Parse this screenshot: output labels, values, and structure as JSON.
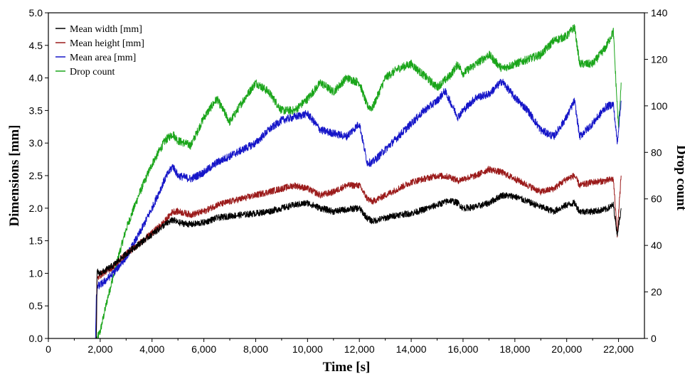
{
  "chart_data": {
    "type": "line",
    "xlabel": "Time [s]",
    "ylabel": "Dimensions [mm]",
    "y2label": "Drop count",
    "xlim": [
      0,
      23000
    ],
    "ylim": [
      0,
      5
    ],
    "y2lim": [
      0,
      140
    ],
    "x_ticks": [
      "0",
      "2,000",
      "4,000",
      "6,000",
      "8,000",
      "10,000",
      "12,000",
      "14,000",
      "16,000",
      "18,000",
      "20,000",
      "22,000"
    ],
    "y_ticks": [
      "0.0",
      "0.5",
      "1.0",
      "1.5",
      "2.0",
      "2.5",
      "3.0",
      "3.5",
      "4.0",
      "4.5",
      "5.0"
    ],
    "y2_ticks": [
      "0",
      "20",
      "40",
      "60",
      "80",
      "100",
      "120",
      "140"
    ],
    "legend_position": "top-left",
    "grid": false,
    "series": [
      {
        "name": "Mean width [mm]",
        "axis": "left",
        "color": "#000000",
        "noise": 0.05,
        "x": [
          0,
          1850,
          1880,
          1950,
          2100,
          2500,
          3000,
          3500,
          4000,
          4500,
          4800,
          5000,
          5500,
          6000,
          6500,
          7000,
          7500,
          8000,
          8500,
          9000,
          9500,
          10000,
          10500,
          11000,
          11500,
          12000,
          12300,
          12500,
          13000,
          13500,
          14000,
          14500,
          15000,
          15500,
          15800,
          16000,
          16500,
          17000,
          17500,
          18000,
          18500,
          19000,
          19500,
          20000,
          20300,
          20500,
          21000,
          21500,
          21800,
          21950,
          22100
        ],
        "y": [
          0,
          0,
          1.05,
          1.0,
          1.02,
          1.12,
          1.3,
          1.45,
          1.6,
          1.75,
          1.82,
          1.78,
          1.75,
          1.78,
          1.85,
          1.88,
          1.9,
          1.92,
          1.95,
          2.0,
          2.05,
          2.08,
          2.0,
          1.95,
          1.98,
          2.0,
          1.85,
          1.8,
          1.85,
          1.9,
          1.92,
          1.98,
          2.05,
          2.12,
          2.08,
          2.0,
          2.02,
          2.08,
          2.2,
          2.18,
          2.1,
          2.02,
          1.95,
          2.05,
          2.08,
          1.95,
          1.95,
          1.98,
          2.05,
          1.6,
          2.0
        ]
      },
      {
        "name": "Mean height [mm]",
        "axis": "left",
        "color": "#9b1b1b",
        "noise": 0.05,
        "x": [
          0,
          1850,
          1880,
          1950,
          2100,
          2500,
          3000,
          3500,
          4000,
          4500,
          4800,
          5000,
          5500,
          6000,
          6500,
          7000,
          7500,
          8000,
          8500,
          9000,
          9500,
          10000,
          10500,
          11000,
          11500,
          12000,
          12300,
          12500,
          13000,
          13500,
          14000,
          14500,
          15000,
          15500,
          15800,
          16000,
          16500,
          17000,
          17500,
          18000,
          18500,
          19000,
          19500,
          20000,
          20300,
          20500,
          21000,
          21500,
          21800,
          21950,
          22100
        ],
        "y": [
          0,
          0,
          0.9,
          0.95,
          1.0,
          1.1,
          1.3,
          1.45,
          1.62,
          1.8,
          1.95,
          1.95,
          1.9,
          1.95,
          2.05,
          2.1,
          2.15,
          2.2,
          2.25,
          2.3,
          2.35,
          2.3,
          2.2,
          2.25,
          2.35,
          2.35,
          2.15,
          2.1,
          2.2,
          2.3,
          2.4,
          2.45,
          2.5,
          2.48,
          2.42,
          2.45,
          2.5,
          2.6,
          2.55,
          2.45,
          2.35,
          2.25,
          2.3,
          2.45,
          2.5,
          2.35,
          2.4,
          2.42,
          2.45,
          1.6,
          2.5
        ]
      },
      {
        "name": "Mean area [mm]",
        "axis": "left",
        "color": "#1515c8",
        "noise": 0.06,
        "x": [
          0,
          1820,
          1850,
          1900,
          2100,
          2500,
          3000,
          3500,
          4000,
          4500,
          4800,
          5000,
          5500,
          6000,
          6500,
          7000,
          7500,
          8000,
          8500,
          9000,
          9500,
          10000,
          10500,
          11000,
          11500,
          12000,
          12300,
          12500,
          13000,
          13500,
          14000,
          14500,
          15000,
          15300,
          15800,
          16000,
          16500,
          17000,
          17500,
          18000,
          18500,
          19000,
          19500,
          20000,
          20300,
          20500,
          21000,
          21500,
          21800,
          21950,
          22100
        ],
        "y": [
          0,
          0,
          0.6,
          0.8,
          0.85,
          1.0,
          1.25,
          1.6,
          2.0,
          2.45,
          2.65,
          2.5,
          2.45,
          2.55,
          2.7,
          2.8,
          2.9,
          3.0,
          3.2,
          3.35,
          3.4,
          3.45,
          3.2,
          3.15,
          3.1,
          3.3,
          2.7,
          2.7,
          2.9,
          3.1,
          3.3,
          3.5,
          3.65,
          3.8,
          3.4,
          3.5,
          3.7,
          3.75,
          3.95,
          3.7,
          3.5,
          3.2,
          3.1,
          3.4,
          3.65,
          3.1,
          3.3,
          3.55,
          3.6,
          3.0,
          3.65
        ]
      },
      {
        "name": "Drop count",
        "axis": "right",
        "color": "#1aa51a",
        "noise": 1.8,
        "x": [
          0,
          1880,
          2000,
          2300,
          2700,
          3000,
          3500,
          4000,
          4500,
          4800,
          5000,
          5500,
          6000,
          6500,
          7000,
          7500,
          8000,
          8500,
          9000,
          9500,
          10000,
          10500,
          11000,
          11500,
          12000,
          12300,
          12500,
          13000,
          13500,
          14000,
          14500,
          15000,
          15500,
          15800,
          16000,
          16500,
          17000,
          17500,
          18000,
          18500,
          19000,
          19500,
          20000,
          20300,
          20500,
          21000,
          21500,
          21800,
          21900,
          22000,
          22100
        ],
        "y": [
          0,
          0,
          3,
          18,
          35,
          47,
          62,
          75,
          85,
          88,
          85,
          83,
          95,
          103,
          93,
          102,
          110,
          106,
          98,
          98,
          103,
          110,
          106,
          112,
          110,
          100,
          99,
          112,
          116,
          118,
          113,
          108,
          113,
          118,
          114,
          118,
          122,
          116,
          118,
          120,
          122,
          128,
          130,
          134,
          118,
          118,
          125,
          132,
          110,
          90,
          110
        ]
      }
    ]
  }
}
